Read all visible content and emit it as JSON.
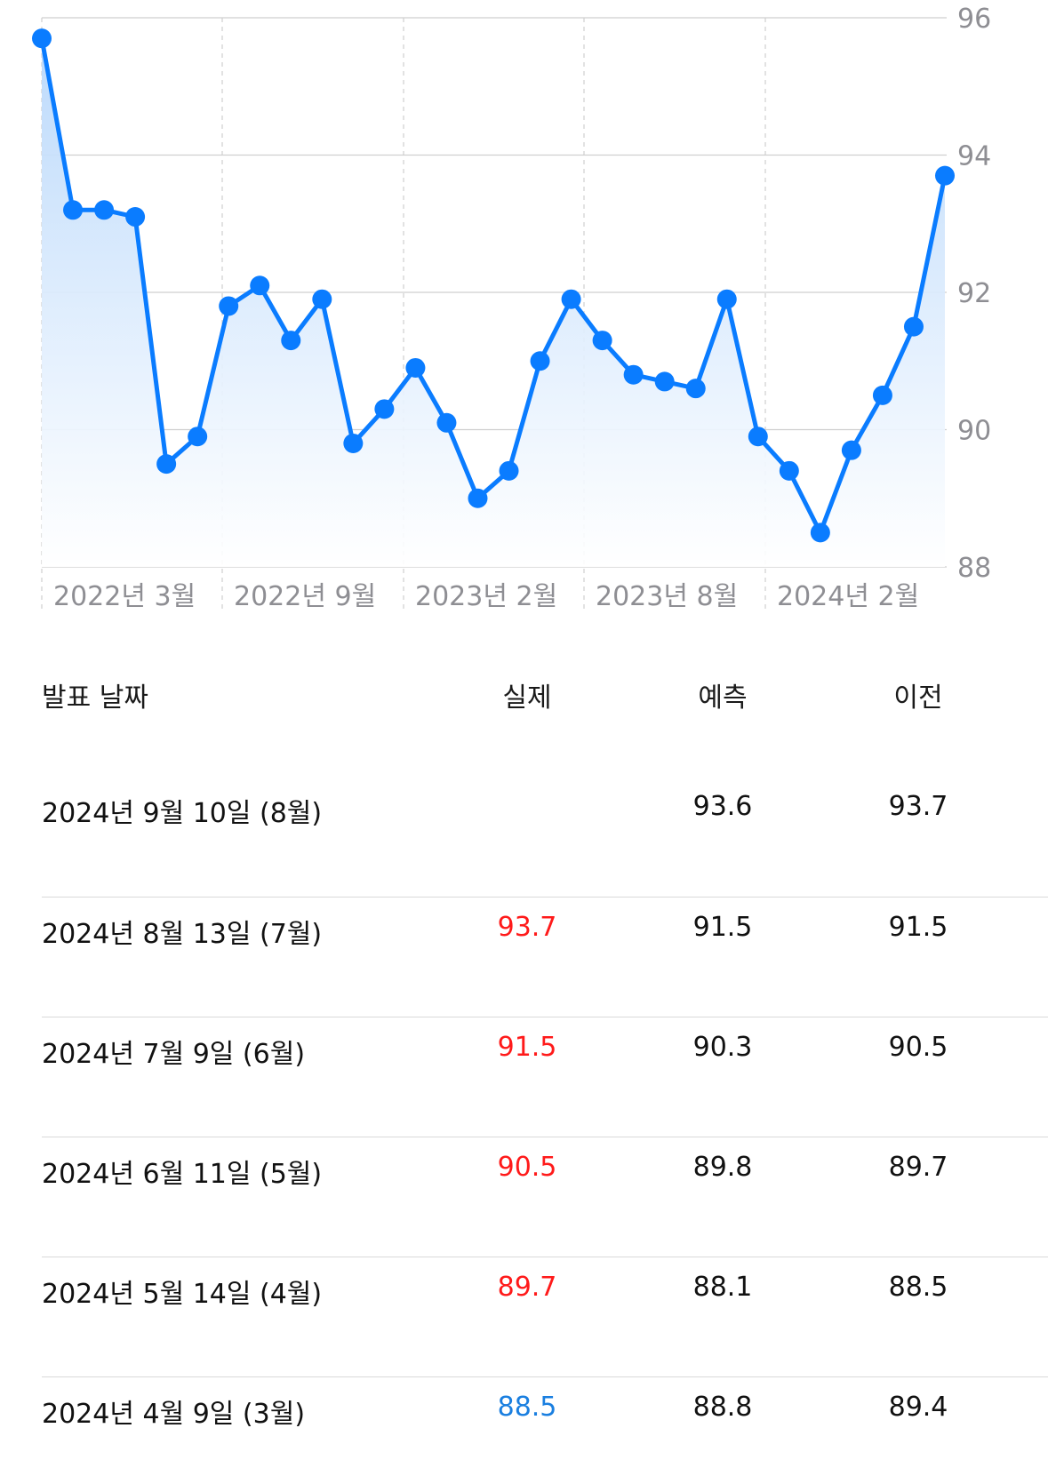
{
  "chart_data": {
    "type": "line",
    "x_tick_labels": [
      "2022년 3월",
      "2022년 9월",
      "2023년 2월",
      "2023년 8월",
      "2024년 2월"
    ],
    "y_ticks": [
      88,
      90,
      92,
      94,
      96
    ],
    "ylim": [
      88,
      96
    ],
    "grid": true,
    "colors": {
      "line": "#0a7cff",
      "fill_top": "#b9d8fb",
      "fill_bottom": "#ffffff",
      "grid": "#cfcfcf",
      "tick_label": "#8e8e93"
    },
    "series": [
      {
        "values": [
          95.7,
          93.2,
          93.2,
          93.1,
          89.5,
          89.9,
          91.8,
          92.1,
          91.3,
          91.9,
          89.8,
          90.3,
          90.9,
          90.1,
          89.0,
          89.4,
          91.0,
          91.9,
          91.3,
          90.8,
          90.7,
          90.6,
          91.9,
          89.9,
          89.4,
          88.5,
          89.7,
          90.5,
          91.5,
          93.7
        ]
      }
    ]
  },
  "table": {
    "headers": {
      "date": "발표 날짜",
      "actual": "실제",
      "forecast": "예측",
      "previous": "이전"
    },
    "rows": [
      {
        "date": "2024년 9월 10일 (8월)",
        "actual": "",
        "forecast": "93.6",
        "previous": "93.7",
        "actual_color": "#111111"
      },
      {
        "date": "2024년 8월 13일 (7월)",
        "actual": "93.7",
        "forecast": "91.5",
        "previous": "91.5",
        "actual_color": "#ff1a1a"
      },
      {
        "date": "2024년 7월 9일 (6월)",
        "actual": "91.5",
        "forecast": "90.3",
        "previous": "90.5",
        "actual_color": "#ff1a1a"
      },
      {
        "date": "2024년 6월 11일 (5월)",
        "actual": "90.5",
        "forecast": "89.8",
        "previous": "89.7",
        "actual_color": "#ff1a1a"
      },
      {
        "date": "2024년 5월 14일 (4월)",
        "actual": "89.7",
        "forecast": "88.1",
        "previous": "88.5",
        "actual_color": "#ff1a1a"
      },
      {
        "date": "2024년 4월 9일 (3월)",
        "actual": "88.5",
        "forecast": "88.8",
        "previous": "89.4",
        "actual_color": "#1a7fe0"
      }
    ]
  }
}
